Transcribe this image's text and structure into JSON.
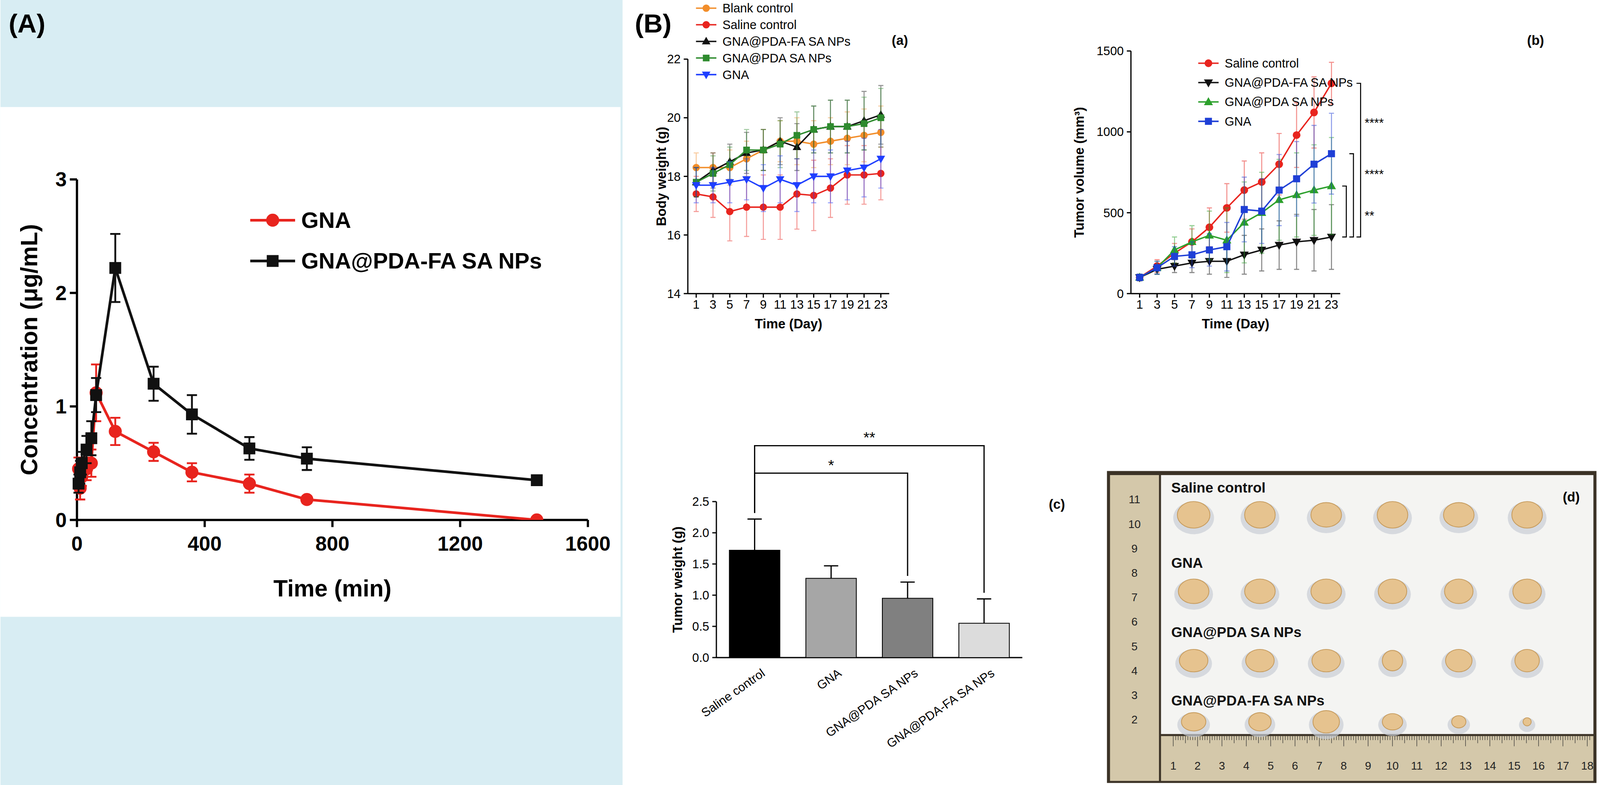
{
  "group_label": "(B)",
  "chart_data": [
    {
      "type": "line",
      "panel_label": "(A)",
      "x_label": "Time (min)",
      "y_label": "Concentration (μg/mL)",
      "x": [
        5,
        10,
        15,
        30,
        45,
        60,
        120,
        240,
        360,
        540,
        720,
        1440
      ],
      "series": [
        {
          "name": "GNA",
          "color": "#e8241e",
          "marker": "circle",
          "values": [
            0.45,
            0.28,
            0.38,
            0.45,
            0.5,
            1.12,
            0.78,
            0.6,
            0.42,
            0.32,
            0.18,
            0.0
          ],
          "errors": [
            0.1,
            0.1,
            0.08,
            0.1,
            0.12,
            0.25,
            0.12,
            0.08,
            0.08,
            0.08,
            0.03,
            0.02
          ]
        },
        {
          "name": "GNA@PDA-FA SA NPs",
          "color": "#111111",
          "marker": "square",
          "values": [
            0.32,
            0.42,
            0.5,
            0.62,
            0.72,
            1.1,
            2.22,
            1.2,
            0.93,
            0.63,
            0.54,
            0.35
          ],
          "errors": [
            0.08,
            0.1,
            0.1,
            0.12,
            0.15,
            0.15,
            0.3,
            0.15,
            0.17,
            0.1,
            0.1,
            0.04
          ]
        }
      ],
      "xlim": [
        0,
        1600
      ],
      "xticks": [
        0,
        400,
        800,
        1200,
        1600
      ],
      "ylim": [
        0,
        3
      ],
      "yticks": [
        0,
        1,
        2,
        3
      ],
      "legend": "upper right"
    },
    {
      "type": "line",
      "panel_label": "(a)",
      "x_label": "Time (Day)",
      "y_label": "Body weight (g)",
      "x": [
        1,
        3,
        5,
        7,
        9,
        11,
        13,
        15,
        17,
        19,
        21,
        23
      ],
      "series": [
        {
          "name": "Blank control",
          "color": "#f28e2b",
          "marker": "circle",
          "values": [
            18.3,
            18.3,
            18.3,
            18.6,
            18.9,
            19.2,
            19.2,
            19.1,
            19.2,
            19.3,
            19.4,
            19.5
          ],
          "errors": [
            0.5,
            0.5,
            0.6,
            0.6,
            0.7,
            0.7,
            0.8,
            0.8,
            0.8,
            0.9,
            0.9,
            0.9
          ]
        },
        {
          "name": "Saline control",
          "color": "#e8241e",
          "marker": "circle",
          "values": [
            17.4,
            17.3,
            16.8,
            16.95,
            16.95,
            16.95,
            17.4,
            17.35,
            17.6,
            18.05,
            18.05,
            18.1
          ],
          "errors": [
            0.6,
            0.7,
            1.0,
            1.0,
            1.1,
            1.1,
            1.2,
            1.2,
            1.0,
            1.0,
            1.0,
            0.9
          ]
        },
        {
          "name": "GNA@PDA-FA SA NPs",
          "color": "#111111",
          "marker": "triangle",
          "values": [
            17.8,
            18.2,
            18.5,
            18.8,
            18.9,
            19.2,
            19.0,
            19.6,
            19.7,
            19.7,
            19.9,
            20.1
          ],
          "errors": [
            0.5,
            0.6,
            0.6,
            0.7,
            0.7,
            0.8,
            0.8,
            0.8,
            0.9,
            0.9,
            1.0,
            1.0
          ]
        },
        {
          "name": "GNA@PDA SA NPs",
          "color": "#2e8b2e",
          "marker": "square",
          "values": [
            17.8,
            18.1,
            18.4,
            18.9,
            18.9,
            19.1,
            19.4,
            19.6,
            19.7,
            19.7,
            19.8,
            20.0
          ],
          "errors": [
            0.5,
            0.6,
            0.6,
            0.7,
            0.7,
            0.8,
            0.8,
            0.8,
            0.9,
            0.9,
            0.9,
            1.0
          ]
        },
        {
          "name": "GNA",
          "color": "#1f3fff",
          "marker": "triangle-down",
          "values": [
            17.7,
            17.7,
            17.8,
            17.9,
            17.6,
            17.9,
            17.7,
            18.0,
            18.0,
            18.2,
            18.3,
            18.6
          ],
          "errors": [
            0.6,
            0.6,
            0.7,
            0.7,
            0.8,
            0.8,
            0.9,
            0.9,
            0.9,
            1.0,
            1.0,
            1.0
          ]
        }
      ],
      "xlim": [
        0,
        24
      ],
      "xticks": [
        1,
        3,
        5,
        7,
        9,
        11,
        13,
        15,
        17,
        19,
        21,
        23
      ],
      "ylim": [
        14,
        22
      ],
      "yticks": [
        14,
        16,
        18,
        20,
        22
      ],
      "legend": "upper left"
    },
    {
      "type": "line",
      "panel_label": "(b)",
      "x_label": "Time (Day)",
      "y_label": "Tumor volume (mm³)",
      "x": [
        1,
        3,
        5,
        7,
        9,
        11,
        13,
        15,
        17,
        19,
        21,
        23
      ],
      "series": [
        {
          "name": "Saline control",
          "color": "#e8241e",
          "marker": "circle",
          "values": [
            100,
            170,
            250,
            320,
            410,
            530,
            640,
            690,
            800,
            980,
            1120,
            1300
          ],
          "errors": [
            20,
            40,
            60,
            80,
            120,
            150,
            180,
            180,
            190,
            200,
            220,
            130
          ]
        },
        {
          "name": "GNA@PDA-FA SA NPs",
          "color": "#111111",
          "marker": "triangle-down",
          "values": [
            100,
            150,
            170,
            190,
            200,
            200,
            240,
            270,
            300,
            320,
            330,
            350
          ],
          "errors": [
            20,
            30,
            40,
            60,
            80,
            100,
            120,
            130,
            150,
            170,
            190,
            200
          ]
        },
        {
          "name": "GNA@PDA SA NPs",
          "color": "#2ca02c",
          "marker": "triangle",
          "values": [
            100,
            160,
            270,
            320,
            360,
            330,
            440,
            500,
            580,
            610,
            640,
            665
          ],
          "errors": [
            20,
            40,
            80,
            100,
            150,
            200,
            250,
            250,
            250,
            260,
            280,
            300
          ]
        },
        {
          "name": "GNA",
          "color": "#1f3fd6",
          "marker": "square",
          "values": [
            100,
            160,
            230,
            240,
            270,
            290,
            520,
            510,
            640,
            710,
            800,
            865
          ],
          "errors": [
            20,
            40,
            60,
            80,
            100,
            150,
            200,
            200,
            220,
            230,
            240,
            250
          ]
        }
      ],
      "xlim": [
        0,
        24
      ],
      "xticks": [
        1,
        3,
        5,
        7,
        9,
        11,
        13,
        15,
        17,
        19,
        21,
        23
      ],
      "ylim": [
        0,
        1500
      ],
      "yticks": [
        0,
        500,
        1000,
        1500
      ],
      "legend": "upper left",
      "significance": [
        {
          "label": "****",
          "between": [
            "Saline control",
            "GNA@PDA-FA SA NPs"
          ]
        },
        {
          "label": "****",
          "between": [
            "GNA",
            "GNA@PDA-FA SA NPs"
          ]
        },
        {
          "label": "**",
          "between": [
            "GNA@PDA SA NPs",
            "GNA@PDA-FA SA NPs"
          ]
        }
      ]
    },
    {
      "type": "bar",
      "panel_label": "(c)",
      "y_label": "Tumor weight (g)",
      "categories": [
        "Saline control",
        "GNA",
        "GNA@PDA SA NPs",
        "GNA@PDA-FA SA NPs"
      ],
      "values": [
        1.72,
        1.27,
        0.95,
        0.55
      ],
      "errors": [
        0.5,
        0.2,
        0.26,
        0.39
      ],
      "colors": [
        "#000000",
        "#a6a6a6",
        "#808080",
        "#dcdcdc"
      ],
      "ylim": [
        0,
        2.5
      ],
      "yticks": [
        {
          "value": 0,
          "label": "0.0"
        },
        {
          "value": 0.5,
          "label": "0.5"
        },
        {
          "value": 1,
          "label": "1.0"
        },
        {
          "value": 1.5,
          "label": "1.5"
        },
        {
          "value": 2,
          "label": "2.0"
        },
        {
          "value": 2.5,
          "label": "2.5"
        }
      ],
      "significance": [
        {
          "label": "*",
          "between": [
            "Saline control",
            "GNA@PDA SA NPs"
          ]
        },
        {
          "label": "**",
          "between": [
            "Saline control",
            "GNA@PDA-FA SA NPs"
          ]
        }
      ]
    }
  ],
  "photo": {
    "panel_label": "(d)",
    "rows": [
      "Saline control",
      "GNA",
      "GNA@PDA SA NPs",
      "GNA@PDA-FA SA NPs"
    ],
    "ruler_x": [
      1,
      2,
      3,
      4,
      5,
      6,
      7,
      8,
      9,
      10,
      11,
      12,
      13,
      14,
      15,
      16,
      17,
      18
    ],
    "ruler_y": [
      11,
      10,
      9,
      8,
      7,
      6,
      5,
      4,
      3,
      2
    ]
  }
}
